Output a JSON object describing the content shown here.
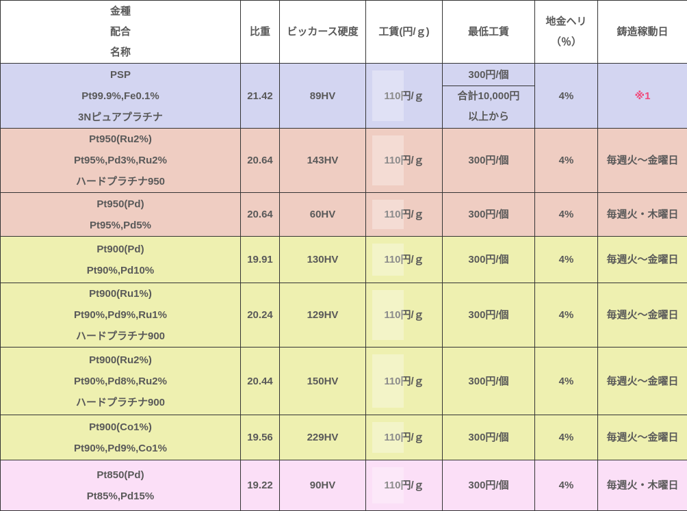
{
  "colors": {
    "text": "#595959",
    "border": "#333333",
    "note_red": "#f0497b",
    "header_bg": "#ffffff",
    "row_themes": {
      "lavender": "#d3d5f1",
      "salmon": "#efcdc2",
      "yellow": "#eef0b0",
      "pink": "#fbdff7"
    }
  },
  "table": {
    "columns": [
      {
        "id": "kind",
        "label_lines": [
          "金種",
          "配合",
          "名称"
        ]
      },
      {
        "id": "specific_gravity",
        "label_lines": [
          "比重"
        ]
      },
      {
        "id": "vickers_hardness",
        "label_lines": [
          "ビッカース硬度"
        ]
      },
      {
        "id": "wage_per_g",
        "label_lines": [
          "工賃(円/ｇ)"
        ]
      },
      {
        "id": "min_wage",
        "label_lines": [
          "最低工賃"
        ]
      },
      {
        "id": "metal_loss",
        "label_lines": [
          "地金ヘリ",
          "（％）"
        ]
      },
      {
        "id": "casting_days",
        "label_lines": [
          "鋳造稼動日"
        ]
      }
    ],
    "rows": [
      {
        "kind": "PSP",
        "composition": "Pt99.9%,Fe0.1%",
        "name": "3Nピュアプラチナ",
        "specific_gravity": "21.42",
        "vickers_hardness": "89HV",
        "wage_per_g": "110円/ｇ",
        "min_wage": "300円/個",
        "min_wage_note_lines": [
          "合計10,000円",
          "以上から"
        ],
        "metal_loss": "4%",
        "casting_days": "※1",
        "casting_days_note": true,
        "theme": "lavender"
      },
      {
        "kind": "Pt950(Ru2%)",
        "composition": "Pt95%,Pd3%,Ru2%",
        "name": "ハードプラチナ950",
        "specific_gravity": "20.64",
        "vickers_hardness": "143HV",
        "wage_per_g": "110円/ｇ",
        "min_wage": "300円/個",
        "metal_loss": "4%",
        "casting_days": "毎週火～金曜日",
        "theme": "salmon"
      },
      {
        "kind": "Pt950(Pd)",
        "composition": "Pt95%,Pd5%",
        "specific_gravity": "20.64",
        "vickers_hardness": "60HV",
        "wage_per_g": "110円/ｇ",
        "min_wage": "300円/個",
        "metal_loss": "4%",
        "casting_days": "毎週火・木曜日",
        "theme": "salmon"
      },
      {
        "kind": "Pt900(Pd)",
        "composition": "Pt90%,Pd10%",
        "specific_gravity": "19.91",
        "vickers_hardness": "130HV",
        "wage_per_g": "110円/ｇ",
        "min_wage": "300円/個",
        "metal_loss": "4%",
        "casting_days": "毎週火～金曜日",
        "theme": "yellow"
      },
      {
        "kind": "Pt900(Ru1%)",
        "composition": "Pt90%,Pd9%,Ru1%",
        "name": "ハードプラチナ900",
        "specific_gravity": "20.24",
        "vickers_hardness": "129HV",
        "wage_per_g": "110円/ｇ",
        "min_wage": "300円/個",
        "metal_loss": "4%",
        "casting_days": "毎週火～金曜日",
        "theme": "yellow"
      },
      {
        "kind": "Pt900(Ru2%)",
        "composition": "Pt90%,Pd8%,Ru2%",
        "name": "ハードプラチナ900",
        "specific_gravity": "20.44",
        "vickers_hardness": "150HV",
        "wage_per_g": "110円/ｇ",
        "min_wage": "300円/個",
        "metal_loss": "4%",
        "casting_days": "毎週火～金曜日",
        "theme": "yellow"
      },
      {
        "kind": "Pt900(Co1%)",
        "composition": "Pt90%,Pd9%,Co1%",
        "specific_gravity": "19.56",
        "vickers_hardness": "229HV",
        "wage_per_g": "110円/ｇ",
        "min_wage": "300円/個",
        "metal_loss": "4%",
        "casting_days": "毎週火～金曜日",
        "theme": "yellow"
      },
      {
        "kind": "Pt850(Pd)",
        "composition": "Pt85%,Pd15%",
        "specific_gravity": "19.22",
        "vickers_hardness": "90HV",
        "wage_per_g": "110円/ｇ",
        "min_wage": "300円/個",
        "metal_loss": "4%",
        "casting_days": "毎週火・木曜日",
        "theme": "pink"
      }
    ]
  }
}
